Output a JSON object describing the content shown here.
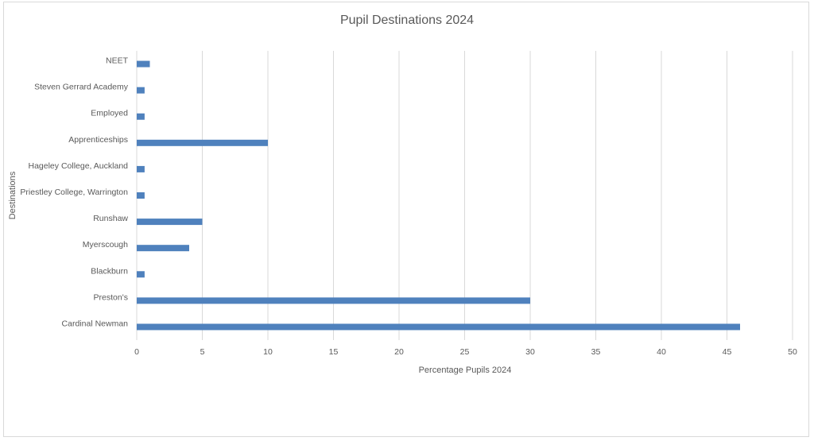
{
  "chart_data": {
    "type": "bar",
    "orientation": "horizontal",
    "title": "Pupil Destinations 2024",
    "xlabel": "Percentage Pupils 2024",
    "ylabel": "Destinations",
    "xlim": [
      0,
      50
    ],
    "xticks": [
      "0",
      "5",
      "10",
      "15",
      "20",
      "25",
      "30",
      "35",
      "40",
      "45",
      "50"
    ],
    "grid": true,
    "legend": "none",
    "categories": [
      "Cardinal Newman",
      "Preston's",
      "Blackburn",
      "Myerscough",
      "Runshaw",
      "Priestley College, Warrington",
      "Hageley College, Auckland",
      "Apprenticeships",
      "Employed",
      "Steven Gerrard Academy",
      "NEET"
    ],
    "series": [
      {
        "values": [
          46,
          30,
          0.6,
          4,
          5,
          0.6,
          0.6,
          10,
          0.6,
          0.6,
          1
        ]
      }
    ],
    "colors": {
      "bar": "#4f81bd",
      "grid": "#d9d9d9",
      "text": "#595959"
    }
  }
}
